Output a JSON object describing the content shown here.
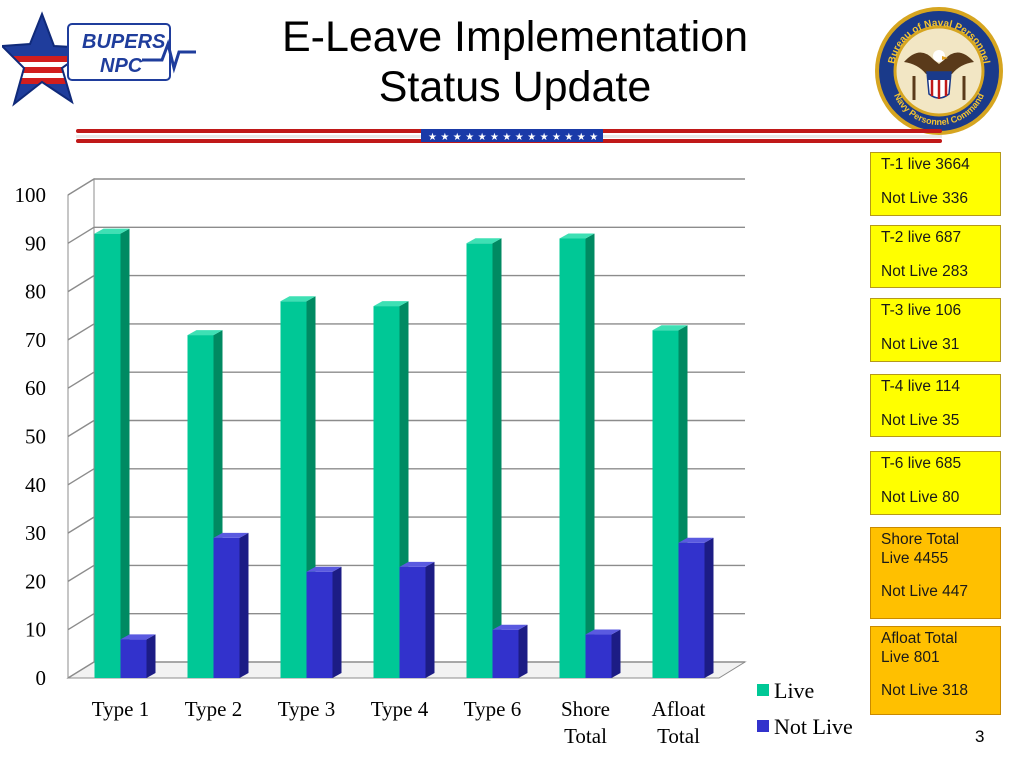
{
  "title": {
    "line1": "E-Leave Implementation",
    "line2": "Status Update"
  },
  "logo": {
    "name": "bupers-npc-logo",
    "line1": "BUPERS",
    "line2": "NPC"
  },
  "seal": {
    "name": "navy-personnel-command-seal",
    "top_text": "Bureau of Naval Personnel",
    "bottom_text": "Navy Personnel Command"
  },
  "colors": {
    "live": "#00c896",
    "live_side": "#008a62",
    "not_live": "#3232cc",
    "not_live_side": "#1c1c85",
    "flag_red": "#c01818",
    "flag_blue": "#1a3aa8",
    "box_yellow": "#ffff00",
    "box_orange": "#ffc000"
  },
  "chart_data": {
    "type": "bar",
    "categories": [
      "Type 1",
      "Type 2",
      "Type 3",
      "Type 4",
      "Type 6",
      "Shore Total",
      "Afloat Total"
    ],
    "category_lines": [
      [
        "Type 1"
      ],
      [
        "Type 2"
      ],
      [
        "Type 3"
      ],
      [
        "Type 4"
      ],
      [
        "Type 6"
      ],
      [
        "Shore",
        "Total"
      ],
      [
        "Afloat",
        "Total"
      ]
    ],
    "series": [
      {
        "name": "Live",
        "values": [
          92,
          71,
          78,
          77,
          90,
          91,
          72
        ]
      },
      {
        "name": "Not Live",
        "values": [
          8,
          29,
          22,
          23,
          10,
          9,
          28
        ]
      }
    ],
    "ylim": [
      0,
      100
    ],
    "yticks": [
      "0",
      "10",
      "20",
      "30",
      "40",
      "50",
      "60",
      "70",
      "80",
      "90",
      "100"
    ],
    "grid": true,
    "legend_position": "bottom-right",
    "style": "3d-clustered-column"
  },
  "status_boxes": [
    {
      "line1": "T-1 live 3664",
      "line2": "Not Live 336",
      "kind": "yellow"
    },
    {
      "line1": "T-2 live 687",
      "line2": "Not Live 283",
      "kind": "yellow"
    },
    {
      "line1": "T-3 live 106",
      "line2": "Not Live 31",
      "kind": "yellow"
    },
    {
      "line1": "T-4 live 114",
      "line2": "Not Live 35",
      "kind": "yellow"
    },
    {
      "line1": "T-6 live 685",
      "line2": "Not Live 80",
      "kind": "yellow"
    },
    {
      "line1": "Shore Total\nLive 4455",
      "line2": "Not Live 447",
      "kind": "orange"
    },
    {
      "line1": "Afloat Total\nLive 801",
      "line2": "Not Live 318",
      "kind": "orange"
    }
  ],
  "page_number": "3"
}
